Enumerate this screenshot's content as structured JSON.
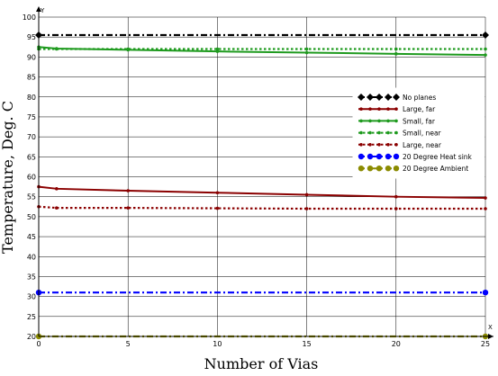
{
  "chart_data": {
    "type": "line",
    "title": "",
    "xlabel": "Number of Vias",
    "ylabel": "Temperature, Deg. C",
    "x_axis_letter": "X",
    "y_axis_letter": "Y",
    "xlim": [
      0,
      25
    ],
    "ylim": [
      20,
      100
    ],
    "x_ticks": [
      "0",
      "5",
      "10",
      "15",
      "20",
      "25"
    ],
    "y_ticks": [
      "20",
      "25",
      "30",
      "35",
      "40",
      "45",
      "50",
      "55",
      "60",
      "65",
      "70",
      "75",
      "80",
      "85",
      "90",
      "95",
      "100"
    ],
    "grid": true,
    "legend_position": "right",
    "series": [
      {
        "name": "No planes",
        "color": "#000000",
        "style": "dashdot",
        "marker": "diamond",
        "x": [
          0,
          25
        ],
        "y": [
          95.5,
          95.5
        ]
      },
      {
        "name": "Large, far",
        "color": "#8b0000",
        "style": "solid",
        "marker": "dot",
        "x": [
          0,
          1,
          5,
          10,
          15,
          20,
          25
        ],
        "y": [
          57.5,
          57,
          56.5,
          56,
          55.5,
          55,
          54.7
        ]
      },
      {
        "name": "Small, far",
        "color": "#1e9a1e",
        "style": "solid",
        "marker": "dot",
        "x": [
          0,
          1,
          5,
          10,
          15,
          20,
          25
        ],
        "y": [
          92.5,
          92.1,
          91.8,
          91.4,
          91.1,
          90.8,
          90.5
        ]
      },
      {
        "name": "Small, near",
        "color": "#1e9a1e",
        "style": "dotted",
        "marker": "dot",
        "x": [
          0,
          1,
          5,
          10,
          15,
          20,
          25
        ],
        "y": [
          92,
          92,
          92,
          92,
          92,
          92,
          92
        ]
      },
      {
        "name": "Large, near",
        "color": "#8b0000",
        "style": "dotted",
        "marker": "dot",
        "x": [
          0,
          1,
          5,
          10,
          15,
          20,
          25
        ],
        "y": [
          52.5,
          52.2,
          52.2,
          52.1,
          52,
          52,
          52
        ]
      },
      {
        "name": "20 Degree Heat sink",
        "color": "#0000ff",
        "style": "dashdot",
        "marker": "circle",
        "x": [
          0,
          25
        ],
        "y": [
          31,
          31
        ]
      },
      {
        "name": "20 Degree Ambient",
        "color": "#8b8b00",
        "style": "dashdot",
        "marker": "circle",
        "x": [
          0,
          25
        ],
        "y": [
          20,
          20
        ]
      }
    ]
  }
}
